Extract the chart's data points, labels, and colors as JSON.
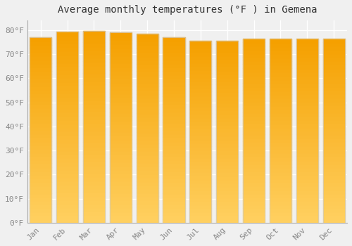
{
  "title": "Average monthly temperatures (°F ) in Gemena",
  "months": [
    "Jan",
    "Feb",
    "Mar",
    "Apr",
    "May",
    "Jun",
    "Jul",
    "Aug",
    "Sep",
    "Oct",
    "Nov",
    "Dec"
  ],
  "values": [
    77.0,
    79.3,
    79.7,
    79.0,
    78.6,
    77.0,
    75.6,
    75.5,
    76.5,
    76.3,
    76.5,
    76.5
  ],
  "bar_color_top": "#F5A000",
  "bar_color_bottom": "#FFD060",
  "bar_edge_color": "#cccccc",
  "background_color": "#f0f0f0",
  "plot_bg_color": "#f0f0f0",
  "grid_color": "#ffffff",
  "ylim": [
    0,
    84
  ],
  "yticks": [
    0,
    10,
    20,
    30,
    40,
    50,
    60,
    70,
    80
  ],
  "title_fontsize": 10,
  "tick_fontsize": 8,
  "title_font": "monospace",
  "tick_font": "monospace",
  "n_gradient_steps": 50
}
